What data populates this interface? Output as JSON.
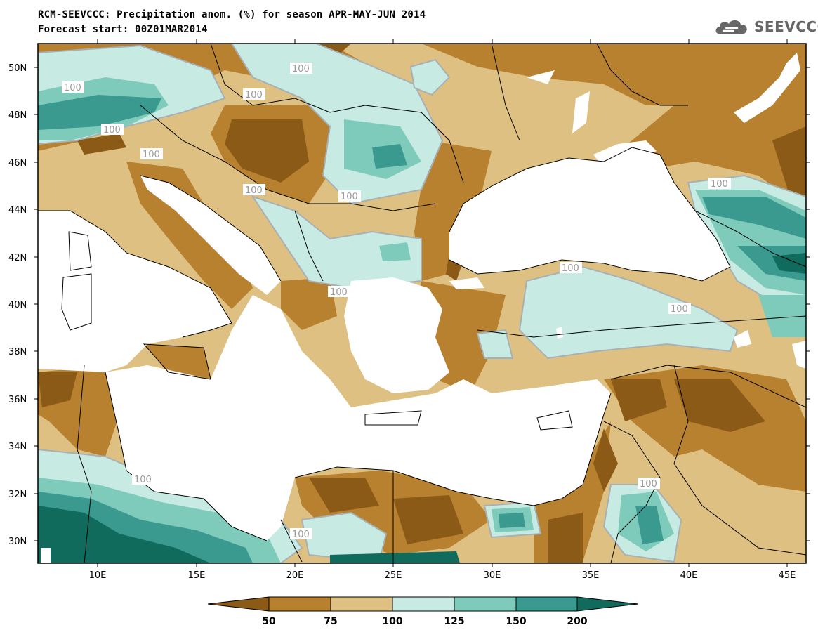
{
  "header": {
    "title_line1": "RCM-SEEVCCC: Precipitation anom. (%) for season APR-MAY-JUN 2014",
    "title_line2": "Forecast start: 00Z01MAR2014",
    "logo_text": "SEEVCCC"
  },
  "axes": {
    "lat_labels": [
      "50N",
      "48N",
      "46N",
      "44N",
      "42N",
      "40N",
      "38N",
      "36N",
      "34N",
      "32N",
      "30N"
    ],
    "lon_labels": [
      "10E",
      "15E",
      "20E",
      "25E",
      "30E",
      "35E",
      "40E",
      "45E"
    ]
  },
  "contour_labels": [
    "100",
    "100",
    "100",
    "100",
    "100",
    "100",
    "100",
    "100",
    "100",
    "100",
    "100",
    "100",
    "100",
    "100"
  ],
  "colorbar": {
    "labels": [
      "50",
      "75",
      "100",
      "125",
      "150",
      "200"
    ],
    "colors": [
      "#8b5a16",
      "#b8812f",
      "#dfc083",
      "#c7ebe3",
      "#7fcbbb",
      "#3a9a8f",
      "#116b5d"
    ]
  },
  "palette": {
    "land": "#dfc083",
    "sea": "#ffffff",
    "contour": "#a7b0b4"
  }
}
